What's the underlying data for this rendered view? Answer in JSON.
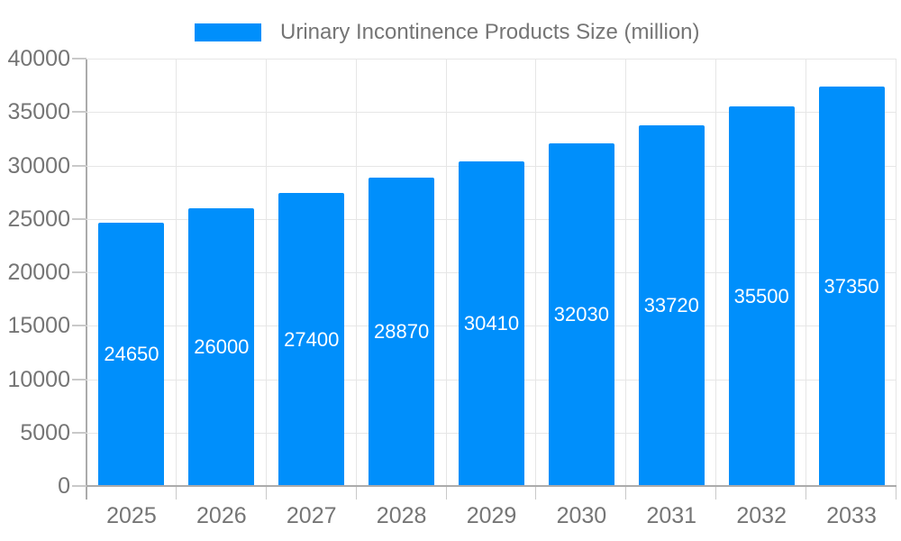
{
  "legend": {
    "label": "Urinary Incontinence Products Size (million)"
  },
  "chart_data": {
    "type": "bar",
    "title": "Urinary Incontinence Products Size (million)",
    "series_name": "Urinary Incontinence Products Size (million)",
    "categories": [
      "2025",
      "2026",
      "2027",
      "2028",
      "2029",
      "2030",
      "2031",
      "2032",
      "2033"
    ],
    "values": [
      24650,
      26000,
      27400,
      28870,
      30410,
      32030,
      33720,
      35500,
      37350
    ],
    "xlabel": "",
    "ylabel": "",
    "ylim": [
      0,
      40000
    ],
    "yticks": [
      0,
      5000,
      10000,
      15000,
      20000,
      25000,
      30000,
      35000,
      40000
    ],
    "grid": true,
    "legend_position": "top",
    "colors": {
      "bar": "#008FFB",
      "grid": "#E6E6E6",
      "axis_line": "#ABABAB",
      "tick": "#C9C9C9",
      "tick_label": "#757575",
      "bar_label": "#FFFFFF",
      "legend_text": "#757575",
      "background": "#FFFFFF"
    }
  }
}
